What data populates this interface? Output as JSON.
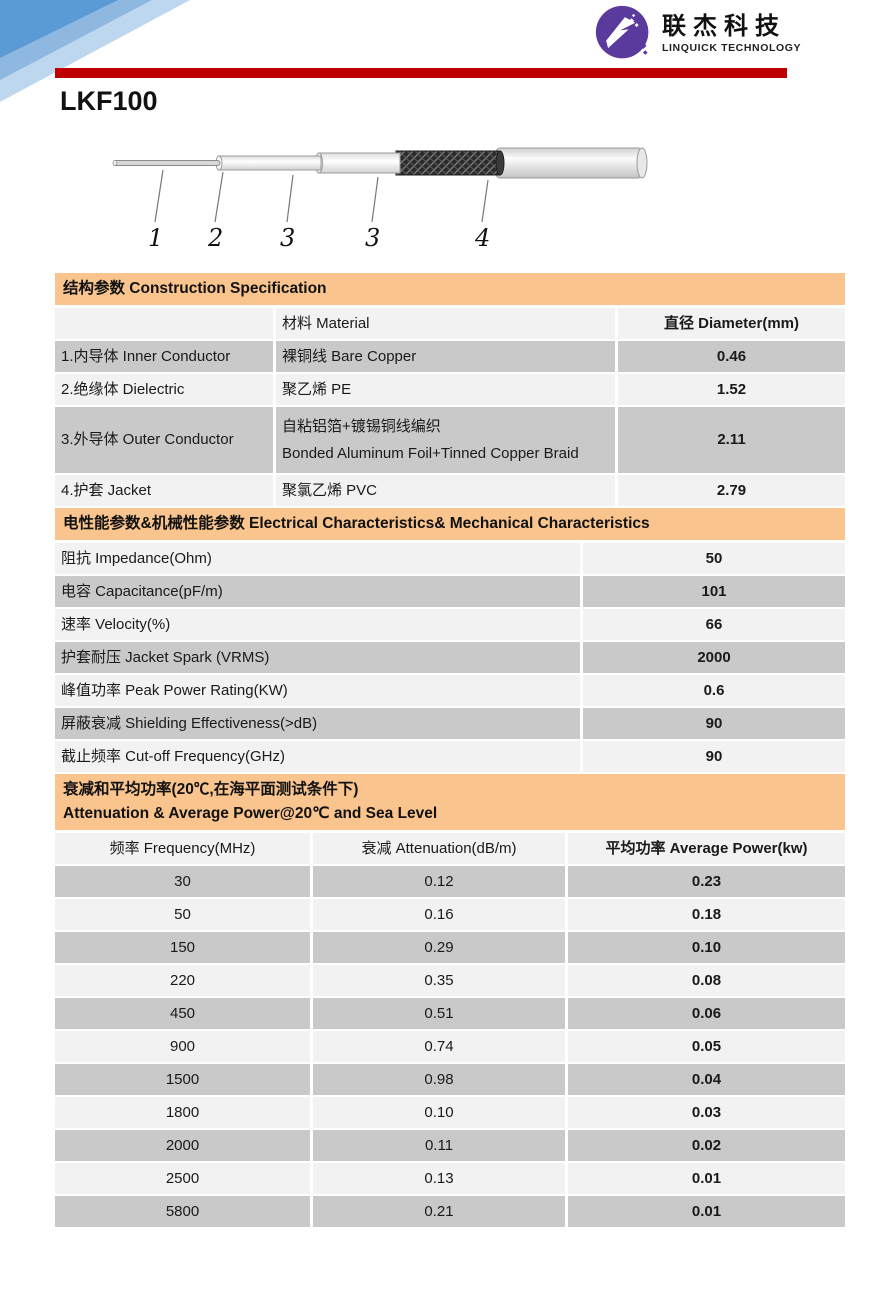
{
  "brand": {
    "name_cn": "联杰科技",
    "name_en": "LINQUICK  TECHNOLOGY",
    "logo_color": "#5B3A9E"
  },
  "page": {
    "title": "LKF100"
  },
  "colors": {
    "accent_red": "#C00000",
    "band_orange": "#F9C48E",
    "row_gray": "#C9C9C9",
    "row_light": "#F2F2F2",
    "decor_blue_dark": "#5B9BD5",
    "decor_blue_mid": "#8FB8E0",
    "decor_blue_light": "#BDD7EE"
  },
  "diagram": {
    "labels": [
      "1",
      "2",
      "3",
      "3",
      "4"
    ]
  },
  "construction": {
    "section_title": "结构参数 Construction Specification",
    "columns": {
      "part": "",
      "material": "材料 Material",
      "diameter": "直径 Diameter(mm)"
    },
    "rows": [
      {
        "part": "1.内导体 Inner Conductor",
        "material": "裸铜线 Bare Copper",
        "diameter": "0.46"
      },
      {
        "part": "2.绝缘体 Dielectric",
        "material": "聚乙烯 PE",
        "diameter": "1.52"
      },
      {
        "part": "3.外导体 Outer Conductor",
        "material": "自粘铝箔+镀锡铜线编织",
        "material2": "Bonded Aluminum Foil+Tinned Copper Braid",
        "diameter": "2.11"
      },
      {
        "part": "4.护套 Jacket",
        "material": "聚氯乙烯 PVC",
        "diameter": "2.79"
      }
    ]
  },
  "electrical": {
    "section_title": "电性能参数&机械性能参数 Electrical Characteristics& Mechanical Characteristics",
    "rows": [
      {
        "label": "阻抗 Impedance(Ohm)",
        "value": "50"
      },
      {
        "label": "电容 Capacitance(pF/m)",
        "value": "101"
      },
      {
        "label": "速率 Velocity(%)",
        "value": "66"
      },
      {
        "label": "护套耐压 Jacket Spark (VRMS)",
        "value": "2000"
      },
      {
        "label": "峰值功率 Peak Power Rating(KW)",
        "value": "0.6"
      },
      {
        "label": "屏蔽衰减 Shielding Effectiveness(>dB)",
        "value": "90"
      },
      {
        "label": "截止频率 Cut-off Frequency(GHz)",
        "value": "90"
      }
    ]
  },
  "attenuation": {
    "section_title_cn": "衰减和平均功率(20℃,在海平面测试条件下)",
    "section_title_en": "Attenuation & Average Power@20℃  and Sea Level",
    "columns": [
      "频率 Frequency(MHz)",
      "衰减 Attenuation(dB/m)",
      "平均功率 Average Power(kw)"
    ],
    "rows": [
      [
        "30",
        "0.12",
        "0.23"
      ],
      [
        "50",
        "0.16",
        "0.18"
      ],
      [
        "150",
        "0.29",
        "0.10"
      ],
      [
        "220",
        "0.35",
        "0.08"
      ],
      [
        "450",
        "0.51",
        "0.06"
      ],
      [
        "900",
        "0.74",
        "0.05"
      ],
      [
        "1500",
        "0.98",
        "0.04"
      ],
      [
        "1800",
        "0.10",
        "0.03"
      ],
      [
        "2000",
        "0.11",
        "0.02"
      ],
      [
        "2500",
        "0.13",
        "0.01"
      ],
      [
        "5800",
        "0.21",
        "0.01"
      ]
    ]
  }
}
